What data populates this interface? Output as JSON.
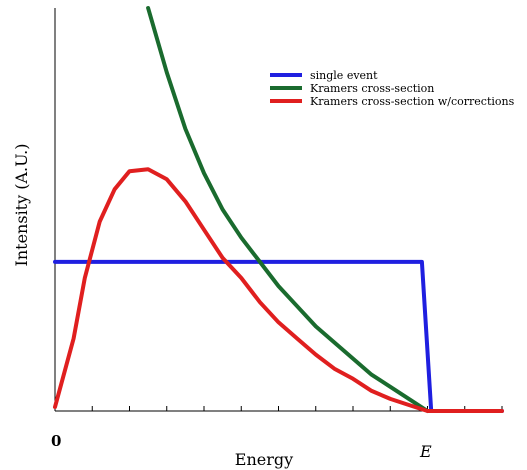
{
  "chart_data": {
    "type": "line",
    "xlabel": "Energy",
    "ylabel": "Intensity (A.U.)",
    "x_tick_labels": {
      "origin": "0",
      "end": "E"
    },
    "xlim": [
      0,
      1.2
    ],
    "ylim": [
      0,
      1.0
    ],
    "minor_ticks": 12,
    "grid": false,
    "legend_position": "top-right",
    "series": [
      {
        "name": "single event",
        "color": "#1f1fe0",
        "points": [
          [
            0.0,
            0.37
          ],
          [
            0.985,
            0.37
          ],
          [
            1.01,
            0.0
          ],
          [
            1.2,
            0.0
          ]
        ]
      },
      {
        "name": "Kramers cross-section",
        "color": "#1a6b2e",
        "points": [
          [
            0.25,
            1.0
          ],
          [
            0.3,
            0.84
          ],
          [
            0.35,
            0.7
          ],
          [
            0.4,
            0.59
          ],
          [
            0.45,
            0.5
          ],
          [
            0.5,
            0.43
          ],
          [
            0.55,
            0.37
          ],
          [
            0.6,
            0.31
          ],
          [
            0.65,
            0.26
          ],
          [
            0.7,
            0.21
          ],
          [
            0.75,
            0.17
          ],
          [
            0.8,
            0.13
          ],
          [
            0.85,
            0.09
          ],
          [
            0.9,
            0.06
          ],
          [
            0.95,
            0.03
          ],
          [
            1.0,
            0.0
          ]
        ]
      },
      {
        "name": "Kramers cross-section w/corrections",
        "color": "#e01f1f",
        "points": [
          [
            0.0,
            0.01
          ],
          [
            0.05,
            0.18
          ],
          [
            0.08,
            0.33
          ],
          [
            0.12,
            0.47
          ],
          [
            0.16,
            0.55
          ],
          [
            0.2,
            0.595
          ],
          [
            0.25,
            0.6
          ],
          [
            0.3,
            0.575
          ],
          [
            0.35,
            0.52
          ],
          [
            0.4,
            0.45
          ],
          [
            0.45,
            0.38
          ],
          [
            0.5,
            0.33
          ],
          [
            0.55,
            0.27
          ],
          [
            0.6,
            0.22
          ],
          [
            0.65,
            0.18
          ],
          [
            0.7,
            0.14
          ],
          [
            0.75,
            0.105
          ],
          [
            0.8,
            0.08
          ],
          [
            0.85,
            0.05
          ],
          [
            0.9,
            0.03
          ],
          [
            0.95,
            0.015
          ],
          [
            1.0,
            0.0
          ],
          [
            1.2,
            0.0
          ]
        ]
      }
    ]
  }
}
